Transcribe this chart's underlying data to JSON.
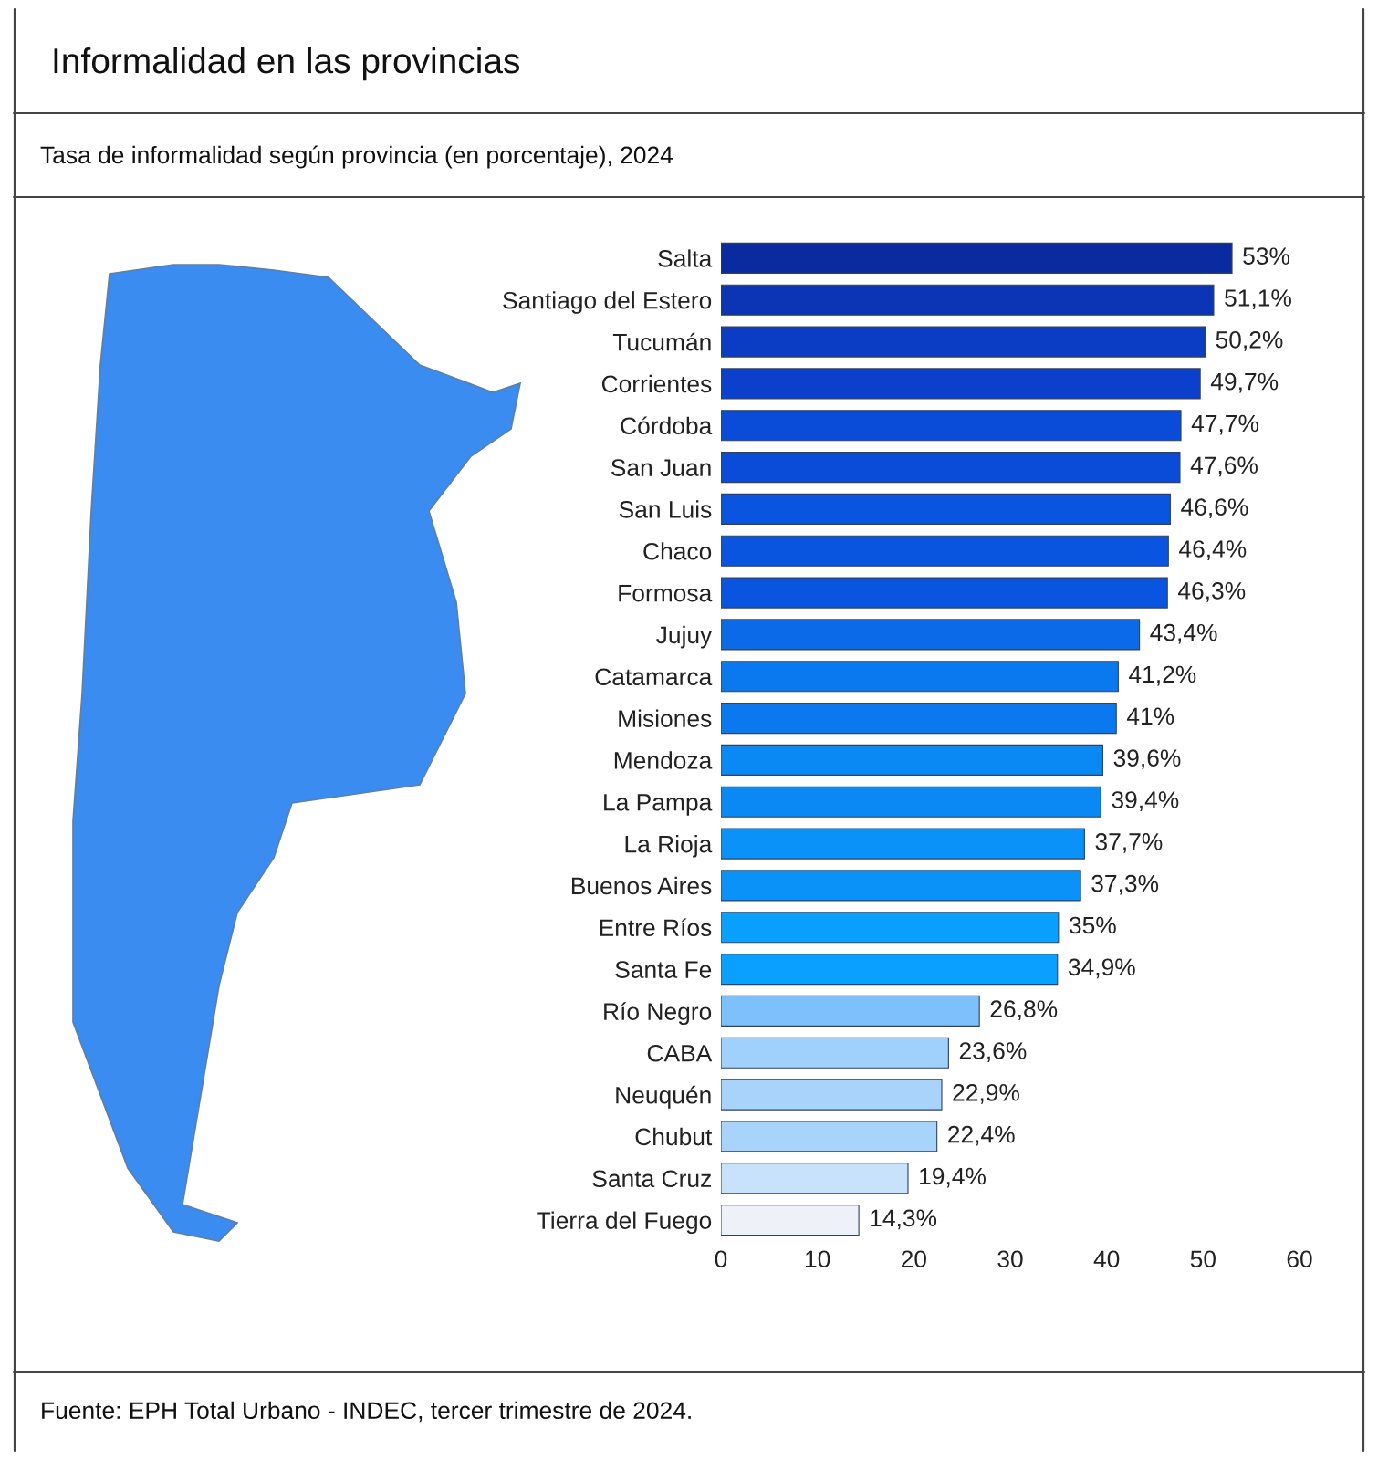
{
  "chart_data": {
    "type": "bar",
    "orientation": "horizontal",
    "title": "Informalidad en las provincias",
    "subtitle": "Tasa de informalidad según provincia (en porcentaje), 2024",
    "categories": [
      "Salta",
      "Santiago del Estero",
      "Tucumán",
      "Corrientes",
      "Córdoba",
      "San Juan",
      "San Luis",
      "Chaco",
      "Formosa",
      "Jujuy",
      "Catamarca",
      "Misiones",
      "Mendoza",
      "La Pampa",
      "La Rioja",
      "Buenos Aires",
      "Entre Ríos",
      "Santa Fe",
      "Río Negro",
      "CABA",
      "Neuquén",
      "Chubut",
      "Santa Cruz",
      "Tierra del Fuego"
    ],
    "values": [
      53,
      51.1,
      50.2,
      49.7,
      47.7,
      47.6,
      46.6,
      46.4,
      46.3,
      43.4,
      41.2,
      41,
      39.6,
      39.4,
      37.7,
      37.3,
      35,
      34.9,
      26.8,
      23.6,
      22.9,
      22.4,
      19.4,
      14.3
    ],
    "value_labels": [
      "53%",
      "51,1%",
      "50,2%",
      "49,7%",
      "47,7%",
      "47,6%",
      "46,6%",
      "46,4%",
      "46,3%",
      "43,4%",
      "41,2%",
      "41%",
      "39,6%",
      "39,4%",
      "37,7%",
      "37,3%",
      "35%",
      "34,9%",
      "26,8%",
      "23,6%",
      "22,9%",
      "22,4%",
      "19,4%",
      "14,3%"
    ],
    "colors": [
      "#0a2ba0",
      "#0b35b5",
      "#0a3dc4",
      "#0a40cc",
      "#0a4bd8",
      "#0a4bd8",
      "#0a55e0",
      "#0a55e0",
      "#0a55e0",
      "#0a6ae8",
      "#0a78ee",
      "#0a78ee",
      "#0a88f4",
      "#0a88f4",
      "#0a92f8",
      "#0a92f8",
      "#0aa0ff",
      "#0aa0ff",
      "#7cc0fc",
      "#a0d0fc",
      "#a8d4fc",
      "#a8d4fc",
      "#c8e2fc",
      "#eef2f8"
    ],
    "xlim": [
      0,
      60
    ],
    "xticks": [
      0,
      10,
      20,
      30,
      40,
      50,
      60
    ],
    "grid": false,
    "legend": false,
    "annotations": [
      "Fuente: EPH Total Urbano - INDEC, tercer trimestre de 2024."
    ]
  }
}
